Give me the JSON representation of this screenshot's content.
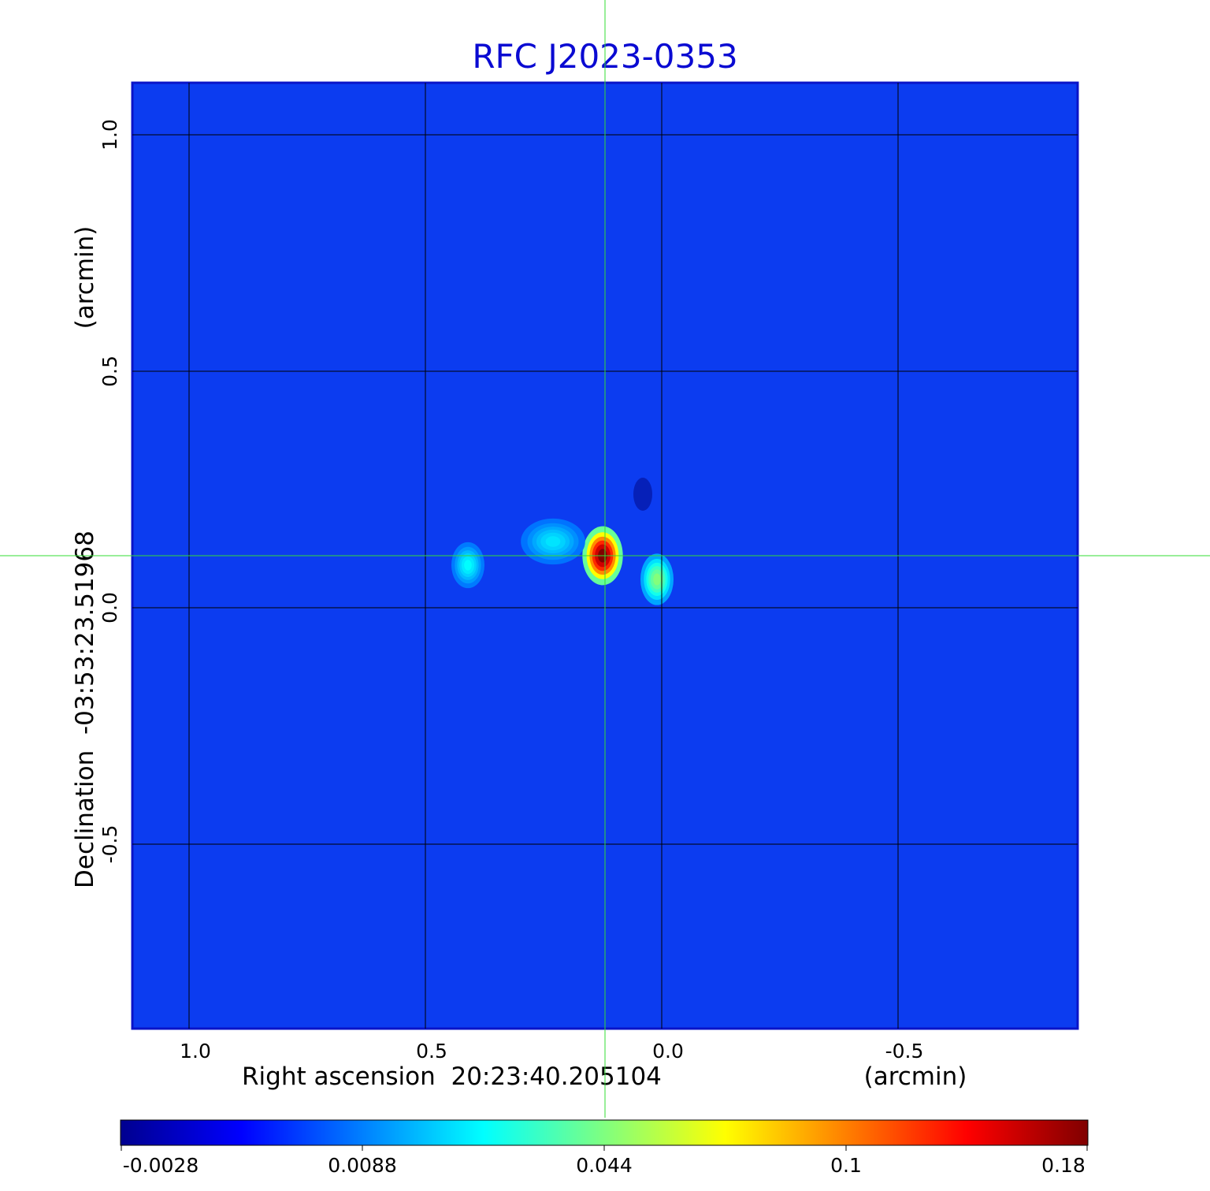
{
  "chart_data": {
    "type": "heatmap",
    "title": "RFC J2023-0353",
    "xlabel": "Right ascension  20:23:40.205104",
    "xunit": "(arcmin)",
    "ylabel": "Declination  -03:53:23.51968",
    "yunit": "(arcmin)",
    "xlim": [
      1.12,
      -0.88
    ],
    "ylim": [
      -0.89,
      1.11
    ],
    "x_ticks": [
      1.0,
      0.5,
      0.0,
      -0.5
    ],
    "x_tick_labels": [
      "1.0",
      "0.5",
      "0.0",
      "-0.5"
    ],
    "y_ticks": [
      1.0,
      0.5,
      0.0,
      -0.5
    ],
    "y_tick_labels": [
      "1.0",
      "0.5",
      "0.0",
      "-0.5"
    ],
    "grid": true,
    "crosshair": {
      "x": 0.12,
      "y": 0.11,
      "color": "#33dd33"
    },
    "colormap": "jet",
    "colorbar": {
      "ticks": [
        "-0.0028",
        "0.0088",
        "0.044",
        "0.1",
        "0.18"
      ],
      "range": [
        -0.0028,
        0.18
      ]
    },
    "sources": [
      {
        "x": 0.125,
        "y": 0.11,
        "peak": 0.18,
        "sigma_x": 0.022,
        "sigma_y": 0.032
      },
      {
        "x": 0.01,
        "y": 0.06,
        "peak": 0.035,
        "sigma_x": 0.018,
        "sigma_y": 0.028
      },
      {
        "x": 0.41,
        "y": 0.09,
        "peak": 0.015,
        "sigma_x": 0.018,
        "sigma_y": 0.025
      },
      {
        "x": 0.23,
        "y": 0.14,
        "peak": 0.012,
        "sigma_x": 0.035,
        "sigma_y": 0.025
      }
    ],
    "negative_features": [
      {
        "x": 0.04,
        "y": 0.24,
        "peak": -0.0028,
        "sigma_x": 0.02,
        "sigma_y": 0.035
      }
    ],
    "background_level": 0.0
  }
}
